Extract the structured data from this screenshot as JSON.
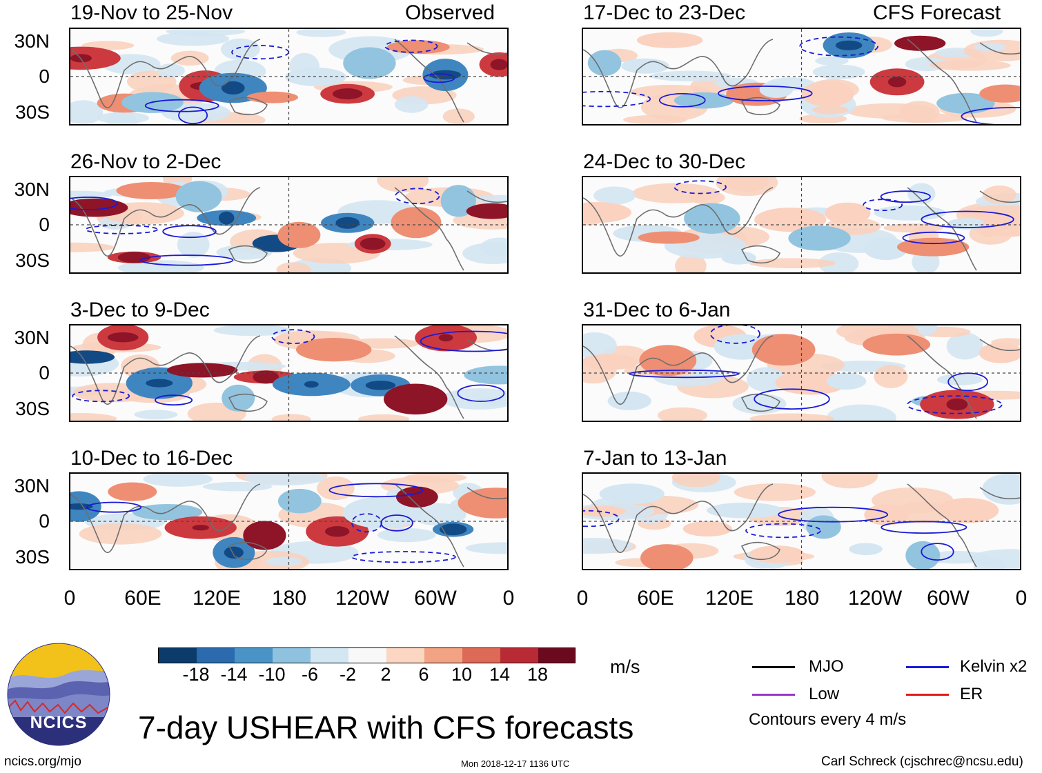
{
  "panels": {
    "p1": {
      "title": "19-Nov to 25-Nov",
      "label": "Observed"
    },
    "p2": {
      "title": "26-Nov to 2-Dec"
    },
    "p3": {
      "title": "3-Dec to 9-Dec"
    },
    "p4": {
      "title": "10-Dec to 16-Dec"
    },
    "p5": {
      "title": "17-Dec to 23-Dec",
      "label": "CFS Forecast"
    },
    "p6": {
      "title": "24-Dec to 30-Dec"
    },
    "p7": {
      "title": "31-Dec to 6-Jan"
    },
    "p8": {
      "title": "7-Jan to 13-Jan"
    }
  },
  "lat_labels": [
    "30N",
    "0",
    "30S"
  ],
  "lon_labels": [
    "0",
    "60E",
    "120E",
    "180",
    "120W",
    "60W",
    "0"
  ],
  "colorbar": {
    "ticks": [
      "-18",
      "-14",
      "-10",
      "-6",
      "-2",
      "2",
      "6",
      "10",
      "14",
      "18"
    ],
    "unit": "m/s",
    "colors": [
      "#0b3b6b",
      "#2a6aad",
      "#4a93c6",
      "#8fc2de",
      "#d3e7f2",
      "#f8f8f8",
      "#fbd6c2",
      "#f2a383",
      "#dc6a56",
      "#b82b35",
      "#6b0a1f"
    ]
  },
  "legend": {
    "mjo": {
      "label": "MJO",
      "color": "#000000"
    },
    "kelvin": {
      "label": "Kelvin x2",
      "color": "#1a1ad6"
    },
    "low": {
      "label": "Low",
      "color": "#9a36c9"
    },
    "er": {
      "label": "ER",
      "color": "#e01b1b"
    },
    "note": "Contours every 4 m/s"
  },
  "logo": {
    "text": "NCICS"
  },
  "main_title": "7-day USHEAR with CFS forecasts",
  "footer": {
    "left": "ncics.org/mjo",
    "center": "Mon 2018-12-17 1136 UTC",
    "right": "Carl Schreck (cjschrec@ncsu.edu)"
  }
}
